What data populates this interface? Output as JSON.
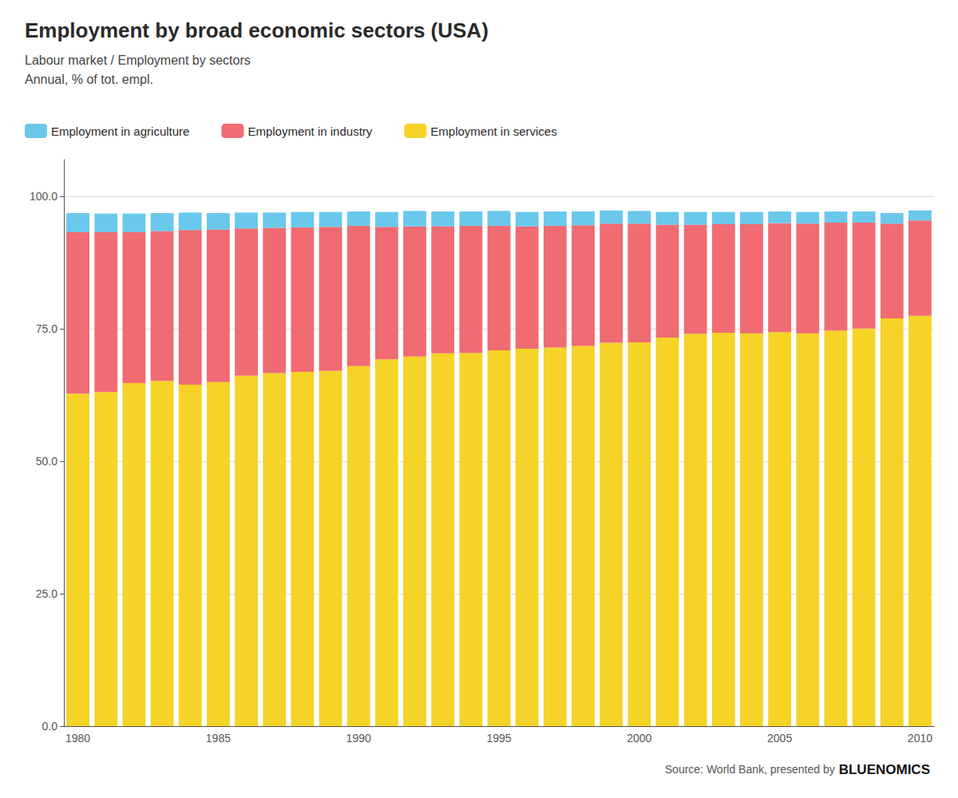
{
  "chart_data": {
    "type": "bar",
    "title": "Employment by broad economic sectors (USA)",
    "subtitle": [
      "Labour market / Employment by sectors",
      "Annual, % of tot. empl."
    ],
    "annotations": [
      "Source: World Bank, presented by",
      "BLUENOMICS"
    ],
    "stacked": true,
    "grid": true,
    "legend": "top",
    "categories": [
      "1980",
      null,
      null,
      null,
      null,
      "1985",
      null,
      null,
      null,
      null,
      "1990",
      null,
      null,
      null,
      null,
      "1995",
      null,
      null,
      null,
      null,
      "2000",
      null,
      null,
      null,
      null,
      "2005",
      null,
      null,
      null,
      null,
      "2010"
    ],
    "series": [
      {
        "name": "Employment in services",
        "color": "#F5D327",
        "values": [
          62.8,
          63.1,
          64.8,
          65.2,
          64.5,
          65.0,
          66.2,
          66.7,
          66.9,
          67.1,
          68.0,
          69.3,
          69.8,
          70.4,
          70.5,
          71.0,
          71.3,
          71.5,
          71.8,
          72.4,
          72.5,
          73.4,
          74.1,
          74.3,
          74.2,
          74.4,
          74.2,
          74.7,
          75.1,
          77.0,
          77.5
        ]
      },
      {
        "name": "Employment in industry",
        "color": "#F06B72",
        "values": [
          30.5,
          30.2,
          28.5,
          28.3,
          29.2,
          28.8,
          27.8,
          27.4,
          27.3,
          27.2,
          26.5,
          25.0,
          24.6,
          24.0,
          24.0,
          23.5,
          23.1,
          23.0,
          22.8,
          22.5,
          22.4,
          21.3,
          20.6,
          20.5,
          20.6,
          20.6,
          20.7,
          20.4,
          20.0,
          17.9,
          18.0
        ]
      },
      {
        "name": "Employment in agriculture",
        "color": "#69C8EC",
        "values": [
          3.6,
          3.5,
          3.5,
          3.4,
          3.3,
          3.1,
          3.0,
          2.9,
          2.9,
          2.8,
          2.7,
          2.8,
          2.9,
          2.8,
          2.7,
          2.8,
          2.7,
          2.7,
          2.6,
          2.5,
          2.4,
          2.4,
          2.4,
          2.3,
          2.3,
          2.2,
          2.2,
          2.1,
          2.1,
          2.0,
          1.9
        ]
      }
    ],
    "ylim": [
      0,
      107
    ],
    "yticks": [
      {
        "value": 0,
        "label": "0.0"
      },
      {
        "value": 25,
        "label": "25.0"
      },
      {
        "value": 50,
        "label": "50.0"
      },
      {
        "value": 75,
        "label": "75.0"
      },
      {
        "value": 100,
        "label": "100.0"
      }
    ]
  }
}
